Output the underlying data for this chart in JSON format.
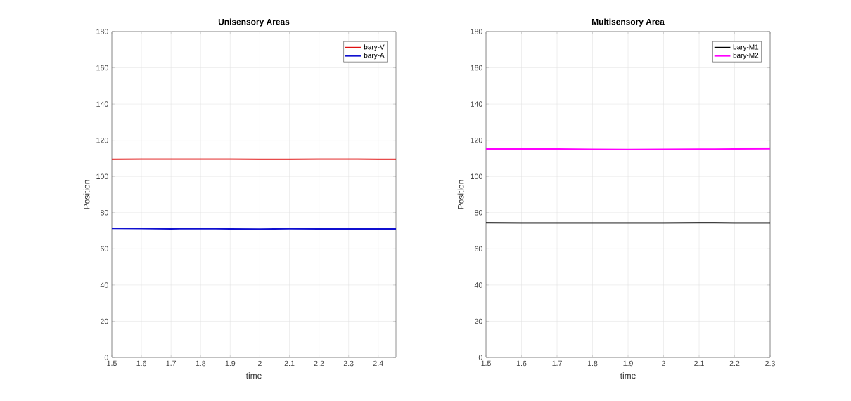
{
  "chart_data": [
    {
      "type": "line",
      "title": "Unisensory Areas",
      "xlabel": "time",
      "ylabel": "Position",
      "xlim": [
        1.5,
        2.46
      ],
      "ylim": [
        0,
        180
      ],
      "xticks": [
        1.5,
        1.6,
        1.7,
        1.8,
        1.9,
        2,
        2.1,
        2.2,
        2.3,
        2.4
      ],
      "yticks": [
        0,
        20,
        40,
        60,
        80,
        100,
        120,
        140,
        160,
        180
      ],
      "grid": true,
      "legend": "top right",
      "x": [
        1.5,
        1.6,
        1.7,
        1.8,
        1.9,
        2.0,
        2.1,
        2.2,
        2.3,
        2.4,
        2.46
      ],
      "series": [
        {
          "name": "bary-V",
          "color": "#e01010",
          "values": [
            109.5,
            109.6,
            109.6,
            109.6,
            109.6,
            109.5,
            109.5,
            109.6,
            109.6,
            109.5,
            109.5
          ]
        },
        {
          "name": "bary-A",
          "color": "#1010d0",
          "values": [
            71.3,
            71.2,
            71.0,
            71.2,
            71.0,
            70.9,
            71.1,
            71.0,
            71.0,
            71.0,
            71.0
          ]
        }
      ]
    },
    {
      "type": "line",
      "title": "Multisensory Area",
      "xlabel": "time",
      "ylabel": "Position",
      "xlim": [
        1.5,
        2.3
      ],
      "ylim": [
        0,
        180
      ],
      "xticks": [
        1.5,
        1.6,
        1.7,
        1.8,
        1.9,
        2,
        2.1,
        2.2,
        2.3
      ],
      "yticks": [
        0,
        20,
        40,
        60,
        80,
        100,
        120,
        140,
        160,
        180
      ],
      "grid": true,
      "legend": "top right",
      "x": [
        1.5,
        1.6,
        1.7,
        1.8,
        1.9,
        2.0,
        2.1,
        2.2,
        2.3
      ],
      "series": [
        {
          "name": "bary-M1",
          "color": "#000000",
          "values": [
            74.4,
            74.3,
            74.3,
            74.3,
            74.3,
            74.3,
            74.4,
            74.3,
            74.3
          ]
        },
        {
          "name": "bary-M2",
          "color": "#ff00ff",
          "values": [
            115.2,
            115.2,
            115.2,
            115.0,
            114.9,
            115.0,
            115.1,
            115.2,
            115.3
          ]
        }
      ]
    }
  ]
}
